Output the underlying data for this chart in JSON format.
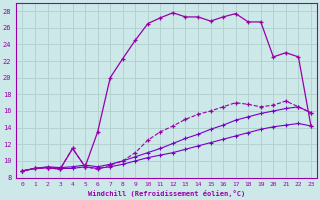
{
  "xlabel": "Windchill (Refroidissement éolien,°C)",
  "bg_color": "#cce8e8",
  "grid_color": "#b0d0cc",
  "line_color1": "#9900aa",
  "line_color2": "#7700cc",
  "xlim": [
    -0.5,
    23.5
  ],
  "ylim": [
    8,
    29
  ],
  "xticks": [
    0,
    1,
    2,
    3,
    4,
    5,
    6,
    7,
    8,
    9,
    10,
    11,
    12,
    13,
    14,
    15,
    16,
    17,
    18,
    19,
    20,
    21,
    22,
    23
  ],
  "yticks": [
    8,
    10,
    12,
    14,
    16,
    18,
    20,
    22,
    24,
    26,
    28
  ],
  "curve1": {
    "x": [
      0,
      1,
      2,
      3,
      4,
      5,
      6,
      7,
      8,
      9,
      10,
      11,
      12,
      13,
      14,
      15,
      16,
      17,
      18,
      19,
      20,
      21,
      22,
      23
    ],
    "y": [
      8.8,
      9.1,
      9.2,
      9.1,
      9.1,
      9.3,
      9.1,
      9.3,
      9.6,
      10.0,
      10.4,
      10.7,
      11.0,
      11.4,
      11.8,
      12.2,
      12.6,
      13.0,
      13.4,
      13.8,
      14.1,
      14.3,
      14.5,
      14.2
    ]
  },
  "curve2": {
    "x": [
      0,
      1,
      2,
      3,
      4,
      5,
      6,
      7,
      8,
      9,
      10,
      11,
      12,
      13,
      14,
      15,
      16,
      17,
      18,
      19,
      20,
      21,
      22,
      23
    ],
    "y": [
      8.8,
      9.1,
      9.3,
      9.2,
      9.3,
      9.5,
      9.3,
      9.6,
      10.0,
      10.5,
      11.0,
      11.5,
      12.1,
      12.7,
      13.2,
      13.8,
      14.3,
      14.9,
      15.3,
      15.7,
      16.0,
      16.3,
      16.5,
      15.8
    ]
  },
  "curve3": {
    "x": [
      0,
      1,
      2,
      3,
      4,
      5,
      6,
      7,
      8,
      9,
      10,
      11,
      12,
      13,
      14,
      15,
      16,
      17,
      18,
      19,
      20,
      21,
      22,
      23
    ],
    "y": [
      8.8,
      9.1,
      9.2,
      9.0,
      11.5,
      9.3,
      9.0,
      9.5,
      10.0,
      11.0,
      12.5,
      13.5,
      14.2,
      15.0,
      15.6,
      16.0,
      16.5,
      17.0,
      16.8,
      16.5,
      16.7,
      17.2,
      16.5,
      15.8
    ]
  },
  "curve4": {
    "x": [
      0,
      1,
      2,
      3,
      4,
      5,
      6,
      7,
      8,
      9,
      10,
      11,
      12,
      13,
      14,
      15,
      16,
      17,
      18,
      19,
      20,
      21,
      22,
      23
    ],
    "y": [
      8.8,
      9.1,
      9.2,
      9.0,
      11.5,
      9.3,
      13.5,
      20.0,
      22.3,
      24.5,
      26.5,
      27.2,
      27.8,
      27.3,
      27.3,
      26.8,
      27.3,
      27.7,
      26.7,
      26.7,
      22.5,
      23.0,
      22.5,
      14.2
    ]
  }
}
